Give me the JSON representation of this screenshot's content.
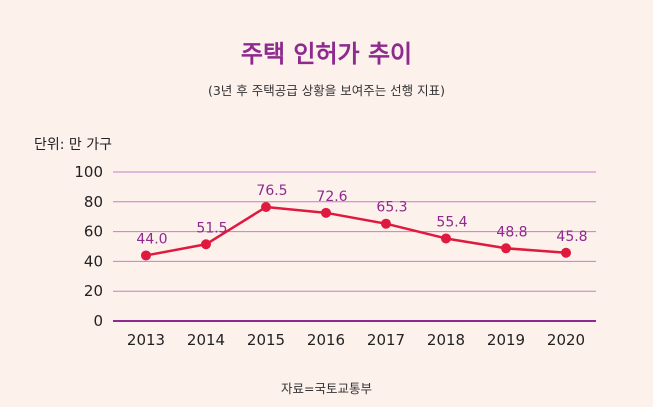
{
  "title": "주택 인허가 추이",
  "subtitle": "(3년 후 주택공급 상황을 보여주는 선행 지표)",
  "unit_label": "단위: 만 가구",
  "source": "자료=국토교통부",
  "colors": {
    "background": "#fdf1ec",
    "title": "#8e2a8e",
    "gridline": "#c77dc7",
    "axis": "#8e2a8e",
    "line": "#e0193f",
    "marker": "#e0193f",
    "data_label": "#8e2a8e"
  },
  "chart_data": {
    "type": "line",
    "title": "주택 인허가 추이",
    "subtitle": "(3년 후 주택공급 상황을 보여주는 선행 지표)",
    "ylabel": "단위: 만 가구",
    "categories": [
      "2013",
      "2014",
      "2015",
      "2016",
      "2017",
      "2018",
      "2019",
      "2020"
    ],
    "values": [
      44.0,
      51.5,
      76.5,
      72.6,
      65.3,
      55.4,
      48.8,
      45.8
    ],
    "data_labels": [
      "44.0",
      "51.5",
      "76.5",
      "72.6",
      "65.3",
      "55.4",
      "48.8",
      "45.8"
    ],
    "ylim": [
      0,
      100
    ],
    "yticks": [
      "0",
      "20",
      "40",
      "60",
      "80",
      "100"
    ],
    "grid": true,
    "legend": "none"
  }
}
